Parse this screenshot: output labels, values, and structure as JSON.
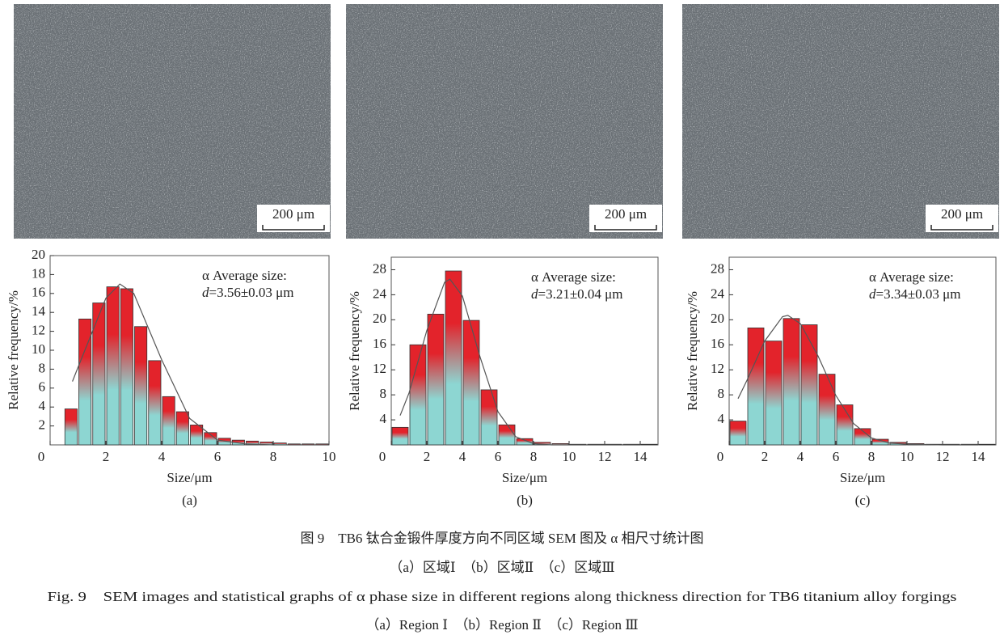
{
  "images": [
    {
      "scale_bar": "200 μm"
    },
    {
      "scale_bar": "200 μm"
    },
    {
      "scale_bar": "200 μm"
    }
  ],
  "chart_data": [
    {
      "type": "histogram",
      "panel_label": "(a)",
      "xlabel": "Size/μm",
      "ylabel": "Relative frequency/%",
      "annotation": {
        "title": "α Average size:",
        "symbol": "d",
        "value": "=3.56±0.03 μm"
      },
      "bins": [
        0.5,
        1,
        1.5,
        2,
        2.5,
        3,
        3.5,
        4,
        4.5,
        5,
        5.5,
        6,
        6.5,
        7,
        7.5,
        8,
        8.5,
        9,
        9.5,
        10
      ],
      "values": [
        3.8,
        13.3,
        15.0,
        16.7,
        16.5,
        12.5,
        8.9,
        5.1,
        3.5,
        2.1,
        1.3,
        0.7,
        0.5,
        0.4,
        0.3,
        0.2,
        0.1,
        0.1,
        0.1
      ],
      "fit": {
        "x": [
          0.8,
          1,
          2,
          2.5,
          3,
          4,
          5,
          6,
          7,
          8,
          9,
          10
        ],
        "y": [
          6.7,
          8.2,
          15.5,
          17.0,
          16.0,
          9.0,
          2.8,
          0.5,
          0.1,
          0,
          0,
          0
        ],
        "color": "#555555"
      },
      "colors": {
        "top": "#e3232b",
        "bottom": "#8dd6d2"
      },
      "xlim": [
        0,
        10
      ],
      "xticks": [
        0,
        2,
        4,
        6,
        8,
        10
      ],
      "ylim": [
        0,
        20
      ],
      "yticks": [
        2,
        4,
        6,
        8,
        10,
        12,
        14,
        16,
        18,
        20
      ]
    },
    {
      "type": "histogram",
      "panel_label": "(b)",
      "xlabel": "Size/μm",
      "ylabel": "Relative frequency/%",
      "annotation": {
        "title": "α Average size:",
        "symbol": "d",
        "value": "=3.21±0.04 μm"
      },
      "bins": [
        0,
        1,
        2,
        3,
        4,
        5,
        6,
        7,
        8,
        9,
        10,
        11,
        12,
        13,
        14,
        15
      ],
      "values": [
        2.8,
        16.0,
        20.9,
        27.8,
        19.9,
        8.8,
        3.2,
        1.0,
        0.4,
        0.2,
        0.1,
        0.1,
        0.1,
        0.1,
        0.1
      ],
      "fit": {
        "x": [
          0.5,
          1,
          2,
          3,
          3.3,
          4,
          5,
          6,
          7,
          8,
          9,
          10,
          12,
          14
        ],
        "y": [
          4.7,
          8.3,
          18.3,
          26.0,
          26.5,
          23.8,
          14.0,
          5.3,
          1.3,
          0.2,
          0,
          0,
          0,
          0
        ],
        "color": "#555555"
      },
      "colors": {
        "top": "#e3232b",
        "bottom": "#8dd6d2"
      },
      "xlim": [
        0,
        15
      ],
      "xticks": [
        0,
        2,
        4,
        6,
        8,
        10,
        12,
        14
      ],
      "ylim": [
        0,
        30
      ],
      "yticks": [
        4,
        8,
        12,
        16,
        20,
        24,
        28
      ]
    },
    {
      "type": "histogram",
      "panel_label": "(c)",
      "xlabel": "Size/μm",
      "ylabel": "Relative frequency/%",
      "annotation": {
        "title": "α Average size:",
        "symbol": "d",
        "value": "=3.34±0.03 μm"
      },
      "bins": [
        0,
        1,
        2,
        3,
        4,
        5,
        6,
        7,
        8,
        9,
        10,
        11,
        12,
        13,
        14,
        15
      ],
      "values": [
        3.8,
        18.7,
        16.6,
        20.2,
        19.2,
        11.3,
        6.4,
        2.6,
        0.9,
        0.4,
        0.2,
        0.1,
        0.1,
        0.1,
        0.1
      ],
      "fit": {
        "x": [
          0.5,
          1,
          2,
          3,
          3.3,
          4,
          5,
          6,
          7,
          8,
          9,
          10,
          12,
          14
        ],
        "y": [
          7.4,
          10.3,
          16.6,
          20.5,
          20.7,
          19.4,
          14.2,
          7.9,
          3.4,
          1.1,
          0.3,
          0.1,
          0,
          0
        ],
        "color": "#555555"
      },
      "colors": {
        "top": "#e3232b",
        "bottom": "#8dd6d2"
      },
      "xlim": [
        0,
        15
      ],
      "xticks": [
        0,
        2,
        4,
        6,
        8,
        10,
        12,
        14
      ],
      "ylim": [
        0,
        30
      ],
      "yticks": [
        4,
        8,
        12,
        16,
        20,
        24,
        28
      ]
    }
  ],
  "caption": {
    "zh_title": "图 9　TB6 钛合金锻件厚度方向不同区域 SEM 图及 α 相尺寸统计图",
    "zh_parts": "（a）区域Ⅰ　（b）区域Ⅱ　（c）区域Ⅲ",
    "en_title": "Fig. 9　SEM images and statistical graphs of α phase size in different regions along thickness direction for TB6 titanium alloy forgings",
    "en_parts": "（a）Region Ⅰ　（b）Region Ⅱ　（c）Region Ⅲ"
  }
}
